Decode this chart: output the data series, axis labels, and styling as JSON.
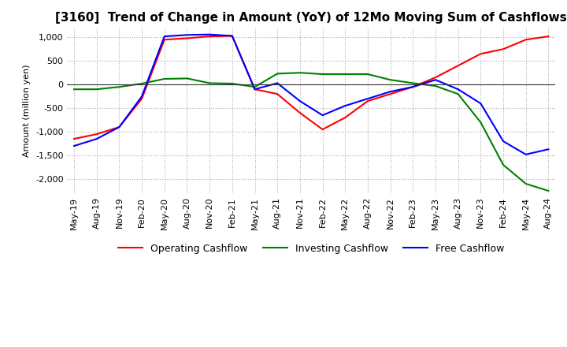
{
  "title": "[3160]  Trend of Change in Amount (YoY) of 12Mo Moving Sum of Cashflows",
  "ylabel": "Amount (million yen)",
  "ylim": [
    -2300,
    1200
  ],
  "yticks": [
    1000,
    500,
    0,
    -500,
    -1000,
    -1500,
    -2000
  ],
  "x_labels": [
    "May-19",
    "Aug-19",
    "Nov-19",
    "Feb-20",
    "May-20",
    "Aug-20",
    "Nov-20",
    "Feb-21",
    "May-21",
    "Aug-21",
    "Nov-21",
    "Feb-22",
    "May-22",
    "Aug-22",
    "Nov-22",
    "Feb-23",
    "May-23",
    "Aug-23",
    "Nov-23",
    "Feb-24",
    "May-24",
    "Aug-24"
  ],
  "operating": [
    -1150,
    -1050,
    -900,
    -300,
    950,
    980,
    1020,
    1030,
    -100,
    -200,
    -600,
    -950,
    -700,
    -350,
    -200,
    -50,
    150,
    400,
    650,
    750,
    950,
    1020
  ],
  "investing": [
    -100,
    -100,
    -50,
    20,
    120,
    130,
    30,
    20,
    -50,
    230,
    250,
    220,
    220,
    220,
    100,
    30,
    -30,
    -200,
    -800,
    -1700,
    -2100,
    -2250
  ],
  "free": [
    -1300,
    -1150,
    -900,
    -250,
    1020,
    1050,
    1060,
    1030,
    -100,
    30,
    -350,
    -650,
    -450,
    -300,
    -150,
    -50,
    100,
    -100,
    -400,
    -1200,
    -1480,
    -1370
  ],
  "operating_color": "#ff0000",
  "investing_color": "#008000",
  "free_color": "#0000ff",
  "grid_color": "#aaaaaa",
  "background_color": "#ffffff",
  "title_fontsize": 11,
  "legend_fontsize": 9,
  "axis_fontsize": 8
}
